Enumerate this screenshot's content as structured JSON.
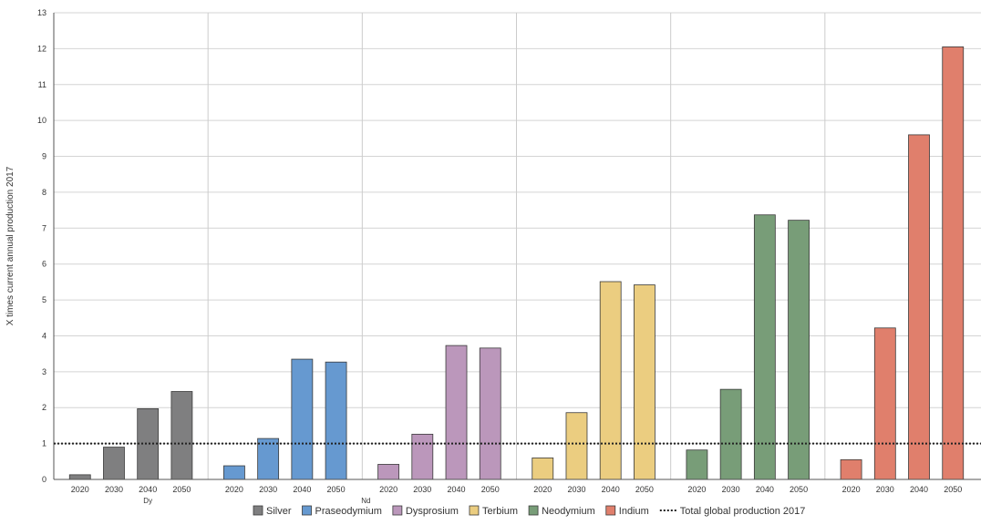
{
  "chart_data": {
    "type": "bar",
    "ylabel": "X times current annual production 2017",
    "ylim": [
      0,
      13
    ],
    "yticks": [
      0,
      1,
      2,
      3,
      4,
      5,
      6,
      7,
      8,
      9,
      10,
      11,
      12,
      13
    ],
    "grid": true,
    "legend_position": "bottom-center",
    "reference_line": {
      "label": "Total global production 2017",
      "value": 1,
      "style": "dotted"
    },
    "extra_labels": [
      "Dy",
      "Nd"
    ],
    "categories": [
      "2020",
      "2030",
      "2040",
      "2050"
    ],
    "series": [
      {
        "name": "Silver",
        "color": "#7f7f80",
        "values": [
          0.13,
          0.9,
          1.97,
          2.45
        ]
      },
      {
        "name": "Praseodymium",
        "color": "#6699d0",
        "values": [
          0.38,
          1.14,
          3.35,
          3.27
        ]
      },
      {
        "name": "Dysprosium",
        "color": "#bb97bb",
        "values": [
          0.42,
          1.26,
          3.73,
          3.66
        ]
      },
      {
        "name": "Terbium",
        "color": "#ebcd80",
        "values": [
          0.6,
          1.86,
          5.51,
          5.42
        ]
      },
      {
        "name": "Neodymium",
        "color": "#789d78",
        "values": [
          0.82,
          2.51,
          7.37,
          7.22
        ]
      },
      {
        "name": "Indium",
        "color": "#e07f6c",
        "values": [
          0.55,
          4.22,
          9.6,
          12.05
        ]
      }
    ]
  }
}
